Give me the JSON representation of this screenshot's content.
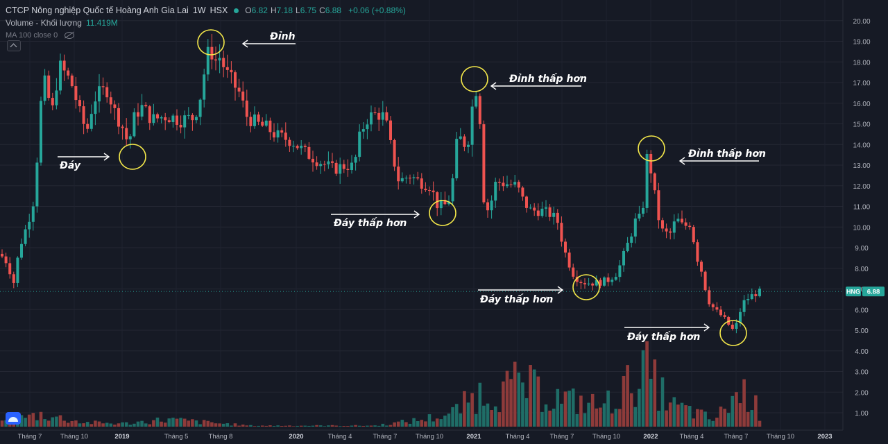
{
  "header": {
    "symbol_name": "CTCP Nông nghiệp Quốc tế Hoàng Anh Gia Lai",
    "interval": "1W",
    "exchange": "HSX",
    "ohlc": {
      "o_label": "O",
      "o": "6.82",
      "h_label": "H",
      "h": "7.18",
      "l_label": "L",
      "l": "6.75",
      "c_label": "C",
      "c": "6.88"
    },
    "change": "+0.06 (+0.88%)",
    "volume_label": "Volume - Khối lượng",
    "volume_value": "11.419M",
    "ma_label": "MA 100 close 0"
  },
  "colors": {
    "up": "#26a69a",
    "down": "#ef5350",
    "background": "#161a25",
    "annotation_circle": "#f5e94a",
    "annotation_text": "#ffffff",
    "price_line": "#26a69a"
  },
  "chart_data": {
    "type": "candlestick",
    "symbol": "HNG",
    "last_price": "6.88",
    "y_ticks": [
      "1.00",
      "2.00",
      "3.00",
      "4.00",
      "5.00",
      "6.00",
      "7.00",
      "8.00",
      "9.00",
      "10.00",
      "11.00",
      "12.00",
      "13.00",
      "14.00",
      "15.00",
      "16.00",
      "17.00",
      "18.00",
      "19.00",
      "20.00"
    ],
    "x_ticks": [
      "Tháng 7",
      "Tháng 10",
      "2019",
      "Tháng 5",
      "Tháng 8",
      "2020",
      "Tháng 4",
      "Tháng 7",
      "Tháng 10",
      "2021",
      "Tháng 4",
      "Tháng 7",
      "Tháng 10",
      "2022",
      "Tháng 4",
      "Tháng 7",
      "Tháng 10",
      "2023"
    ],
    "price_path": [
      [
        0,
        8.7
      ],
      [
        10,
        8.3
      ],
      [
        20,
        7.3
      ],
      [
        28,
        9.0
      ],
      [
        40,
        10.2
      ],
      [
        50,
        11.5
      ],
      [
        58,
        15.8
      ],
      [
        65,
        17.0
      ],
      [
        75,
        15.5
      ],
      [
        85,
        17.8
      ],
      [
        95,
        17.4
      ],
      [
        105,
        16.8
      ],
      [
        115,
        15.5
      ],
      [
        125,
        14.6
      ],
      [
        135,
        16.2
      ],
      [
        145,
        16.5
      ],
      [
        155,
        16.7
      ],
      [
        165,
        15.6
      ],
      [
        175,
        15.0
      ],
      [
        185,
        14.0
      ],
      [
        195,
        15.5
      ],
      [
        205,
        15.8
      ],
      [
        220,
        15.2
      ],
      [
        240,
        15.4
      ],
      [
        260,
        15.2
      ],
      [
        280,
        15.3
      ],
      [
        290,
        16.5
      ],
      [
        298,
        18.3
      ],
      [
        305,
        18.5
      ],
      [
        312,
        18.0
      ],
      [
        318,
        18.3
      ],
      [
        325,
        17.5
      ],
      [
        335,
        17.0
      ],
      [
        345,
        16.5
      ],
      [
        355,
        15.4
      ],
      [
        370,
        15.0
      ],
      [
        385,
        14.8
      ],
      [
        400,
        14.4
      ],
      [
        420,
        14.2
      ],
      [
        440,
        13.6
      ],
      [
        460,
        13.2
      ],
      [
        480,
        12.8
      ],
      [
        500,
        13.0
      ],
      [
        510,
        12.9
      ],
      [
        520,
        14.6
      ],
      [
        530,
        15.3
      ],
      [
        545,
        15.5
      ],
      [
        555,
        15.3
      ],
      [
        565,
        13.6
      ],
      [
        575,
        12.2
      ],
      [
        590,
        12.5
      ],
      [
        605,
        12.2
      ],
      [
        620,
        12.0
      ],
      [
        630,
        11.1
      ],
      [
        640,
        11.0
      ],
      [
        650,
        11.5
      ],
      [
        660,
        14.5
      ],
      [
        668,
        14.0
      ],
      [
        675,
        14.3
      ],
      [
        685,
        17.0
      ],
      [
        692,
        15.2
      ],
      [
        698,
        11.0
      ],
      [
        705,
        10.8
      ],
      [
        715,
        12.2
      ],
      [
        730,
        12.1
      ],
      [
        745,
        12.0
      ],
      [
        755,
        11.2
      ],
      [
        765,
        10.8
      ],
      [
        780,
        10.8
      ],
      [
        795,
        10.6
      ],
      [
        805,
        10.2
      ],
      [
        812,
        9.0
      ],
      [
        825,
        7.8
      ],
      [
        835,
        7.4
      ],
      [
        845,
        7.3
      ],
      [
        860,
        7.3
      ],
      [
        875,
        7.4
      ],
      [
        890,
        7.8
      ],
      [
        905,
        9.2
      ],
      [
        918,
        10.5
      ],
      [
        925,
        10.3
      ],
      [
        933,
        13.5
      ],
      [
        940,
        12.5
      ],
      [
        947,
        10.7
      ],
      [
        955,
        9.8
      ],
      [
        965,
        9.6
      ],
      [
        975,
        10.4
      ],
      [
        985,
        10.0
      ],
      [
        995,
        10.2
      ],
      [
        1005,
        8.5
      ],
      [
        1012,
        7.8
      ],
      [
        1020,
        6.5
      ],
      [
        1030,
        6.0
      ],
      [
        1040,
        5.7
      ],
      [
        1048,
        5.4
      ],
      [
        1055,
        5.0
      ],
      [
        1062,
        5.3
      ],
      [
        1070,
        6.3
      ],
      [
        1080,
        6.6
      ],
      [
        1090,
        6.8
      ],
      [
        1098,
        6.88
      ]
    ],
    "volume_bars": [
      [
        0,
        0.2
      ],
      [
        60,
        0.6
      ],
      [
        120,
        0.2
      ],
      [
        180,
        0.15
      ],
      [
        240,
        0.35
      ],
      [
        300,
        0.2
      ],
      [
        360,
        0.05
      ],
      [
        420,
        0.05
      ],
      [
        480,
        0.05
      ],
      [
        540,
        0.05
      ],
      [
        600,
        0.3
      ],
      [
        650,
        0.6
      ],
      [
        690,
        1.6
      ],
      [
        720,
        1.7
      ],
      [
        750,
        2.1
      ],
      [
        790,
        1.5
      ],
      [
        830,
        1.2
      ],
      [
        870,
        1.0
      ],
      [
        900,
        1.8
      ],
      [
        930,
        2.8
      ],
      [
        945,
        2.0
      ],
      [
        970,
        1.0
      ],
      [
        1000,
        0.7
      ],
      [
        1030,
        0.3
      ],
      [
        1060,
        1.5
      ],
      [
        1080,
        1.7
      ],
      [
        1098,
        0.3
      ]
    ],
    "annotations": [
      {
        "text": "Đáy",
        "type": "bottom"
      },
      {
        "text": "Đỉnh",
        "type": "top"
      },
      {
        "text": "Đáy thấp hơn",
        "type": "bottom"
      },
      {
        "text": "Đỉnh thấp hơn",
        "type": "top"
      },
      {
        "text": "Đỉnh thấp hơn",
        "type": "top"
      },
      {
        "text": "Đáy thấp hơn",
        "type": "bottom"
      },
      {
        "text": "Đáy thấp hơn",
        "type": "bottom"
      }
    ]
  }
}
